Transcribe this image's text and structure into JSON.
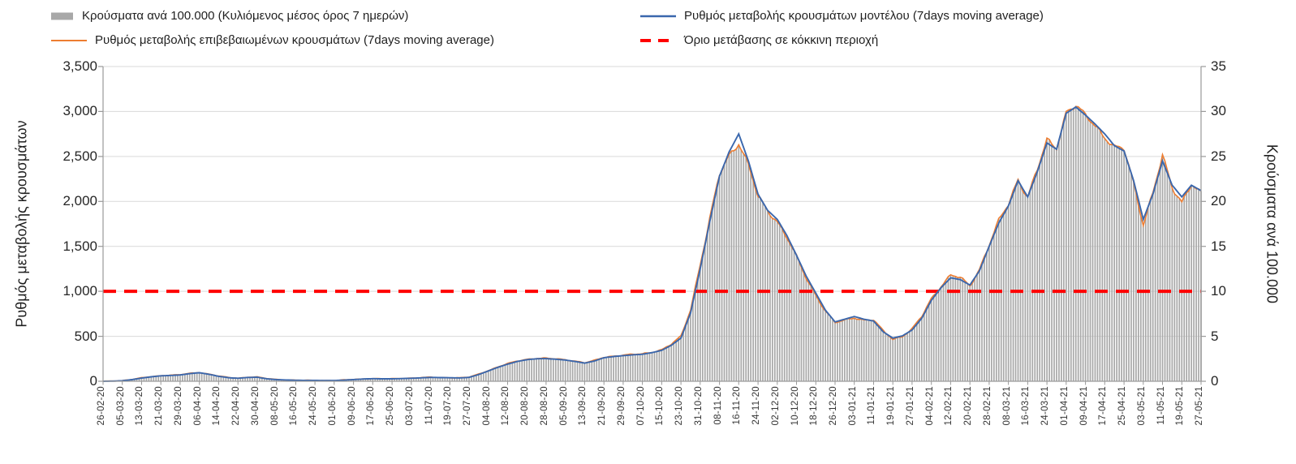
{
  "legend": {
    "bars": {
      "label": "Κρούσματα ανά 100.000 (Κυλιόμενος μέσος όρος 7 ημερών)",
      "color": "#a8a8a8"
    },
    "model": {
      "label": "Ρυθμός μεταβολής κρουσμάτων μοντέλου (7days moving average)",
      "color": "#3a67ad"
    },
    "confirmed": {
      "label": "Ρυθμός μεταβολής επιβεβαιωμένων κρουσμάτων (7days moving average)",
      "color": "#ed7d31"
    },
    "threshold": {
      "label": "Όριο μετάβασης σε κόκκινη περιοχή",
      "color": "#ff0000"
    }
  },
  "left_axis": {
    "title": "Ρυθμός μεταβολής κρουσμάτων",
    "min": 0,
    "max": 3500,
    "step": 500,
    "ticks": [
      "3,500",
      "3,000",
      "2,500",
      "2,000",
      "1,500",
      "1,000",
      "500",
      "0"
    ]
  },
  "right_axis": {
    "title": "Κρούσματα ανά 100.000",
    "min": 0,
    "max": 35,
    "step": 5,
    "ticks": [
      "35",
      "30",
      "25",
      "20",
      "15",
      "10",
      "5",
      "0"
    ]
  },
  "chart_data": {
    "type": "combo bar + line",
    "grid": "horizontal gridlines on",
    "legend_position": "top",
    "x_tick_labels": [
      "26-02-20",
      "05-03-20",
      "13-03-20",
      "21-03-20",
      "29-03-20",
      "06-04-20",
      "14-04-20",
      "22-04-20",
      "30-04-20",
      "08-05-20",
      "16-05-20",
      "24-05-20",
      "01-06-20",
      "09-06-20",
      "17-06-20",
      "25-06-20",
      "03-07-20",
      "11-07-20",
      "19-07-20",
      "27-07-20",
      "04-08-20",
      "12-08-20",
      "20-08-20",
      "28-08-20",
      "05-09-20",
      "13-09-20",
      "21-09-20",
      "29-09-20",
      "07-10-20",
      "15-10-20",
      "23-10-20",
      "31-10-20",
      "08-11-20",
      "16-11-20",
      "24-11-20",
      "02-12-20",
      "10-12-20",
      "18-12-20",
      "26-12-20",
      "03-01-21",
      "11-01-21",
      "19-01-21",
      "27-01-21",
      "04-02-21",
      "12-02-21",
      "20-02-21",
      "28-02-21",
      "08-03-21",
      "16-03-21",
      "24-03-21",
      "01-04-21",
      "09-04-21",
      "17-04-21",
      "25-04-21",
      "03-05-21",
      "11-05-21",
      "19-05-21",
      "27-05-21"
    ],
    "samples_start": "26-02-20",
    "samples_step_days": 4,
    "n_samples": 115,
    "threshold_value_left_axis": 1000,
    "threshold_value_right_axis": 10,
    "bars_note": "bar heights (cases per 100,000, right axis) numerically coincide with confirmed line / 100",
    "series": [
      {
        "id": "bars",
        "name": "Κρούσματα ανά 100.000 (Κυλιόμενος μέσος όρος 7 ημερών)",
        "type": "bar",
        "axis": "right",
        "values": [
          0,
          0,
          0.1,
          0.2,
          0.4,
          0.5,
          0.6,
          0.7,
          0.7,
          0.9,
          1.0,
          0.8,
          0.6,
          0.4,
          0.4,
          0.5,
          0.5,
          0.3,
          0.2,
          0.2,
          0.1,
          0.1,
          0.1,
          0.1,
          0.1,
          0.1,
          0.2,
          0.3,
          0.3,
          0.3,
          0.3,
          0.3,
          0.4,
          0.4,
          0.5,
          0.4,
          0.4,
          0.4,
          0.5,
          0.8,
          1.2,
          1.6,
          2.0,
          2.3,
          2.5,
          2.6,
          2.6,
          2.5,
          2.4,
          2.3,
          2.1,
          2.3,
          2.7,
          2.8,
          2.9,
          3.0,
          3.1,
          3.3,
          3.5,
          4.1,
          5.0,
          8.0,
          13.0,
          18.0,
          23.0,
          25.2,
          26.5,
          24.0,
          20.5,
          19.0,
          17.8,
          16.0,
          13.8,
          11.5,
          9.6,
          7.8,
          6.5,
          6.8,
          7.1,
          6.8,
          6.8,
          5.6,
          4.7,
          5.0,
          5.8,
          7.2,
          9.2,
          10.6,
          11.8,
          11.5,
          10.6,
          12.5,
          15.2,
          17.8,
          19.7,
          22.5,
          20.5,
          23.5,
          26.8,
          26.0,
          30.0,
          30.6,
          29.5,
          28.5,
          27.2,
          26.0,
          25.8,
          22.0,
          17.5,
          21.0,
          25.0,
          21.5,
          20.0,
          22.0,
          20.8
        ]
      },
      {
        "id": "model",
        "name": "Ρυθμός μεταβολής κρουσμάτων μοντέλου (7days moving average)",
        "type": "line",
        "axis": "left",
        "values": [
          0,
          2,
          6,
          18,
          35,
          50,
          60,
          65,
          70,
          85,
          95,
          78,
          55,
          40,
          33,
          42,
          45,
          28,
          18,
          14,
          11,
          10,
          9,
          8,
          8,
          13,
          19,
          25,
          29,
          27,
          27,
          30,
          33,
          38,
          43,
          41,
          39,
          37,
          43,
          75,
          115,
          155,
          190,
          220,
          240,
          250,
          252,
          245,
          236,
          220,
          202,
          225,
          262,
          275,
          285,
          294,
          300,
          318,
          344,
          400,
          480,
          760,
          1250,
          1780,
          2280,
          2550,
          2750,
          2450,
          2080,
          1900,
          1800,
          1620,
          1400,
          1170,
          980,
          790,
          660,
          690,
          720,
          690,
          670,
          550,
          480,
          505,
          570,
          700,
          900,
          1040,
          1150,
          1130,
          1070,
          1230,
          1500,
          1760,
          1950,
          2230,
          2050,
          2330,
          2650,
          2580,
          2980,
          3050,
          2960,
          2860,
          2750,
          2620,
          2560,
          2230,
          1800,
          2080,
          2450,
          2180,
          2050,
          2180,
          2120
        ]
      },
      {
        "id": "confirmed",
        "name": "Ρυθμός μεταβολής επιβεβαιωμένων κρουσμάτων (7days moving average)",
        "type": "line",
        "axis": "left",
        "values": [
          0,
          3,
          8,
          20,
          38,
          52,
          62,
          68,
          72,
          88,
          98,
          80,
          58,
          42,
          35,
          45,
          48,
          30,
          20,
          15,
          12,
          10,
          10,
          8,
          8,
          14,
          20,
          26,
          30,
          28,
          28,
          32,
          35,
          40,
          45,
          42,
          40,
          38,
          45,
          80,
          120,
          160,
          195,
          225,
          245,
          255,
          255,
          248,
          240,
          225,
          205,
          230,
          268,
          280,
          290,
          298,
          305,
          325,
          350,
          410,
          500,
          800,
          1300,
          1800,
          2300,
          2520,
          2650,
          2400,
          2050,
          1900,
          1780,
          1600,
          1380,
          1150,
          960,
          780,
          650,
          680,
          710,
          680,
          680,
          560,
          470,
          500,
          580,
          720,
          920,
          1060,
          1180,
          1150,
          1060,
          1250,
          1520,
          1780,
          1970,
          2250,
          2050,
          2350,
          2680,
          2600,
          3000,
          3060,
          2950,
          2850,
          2720,
          2600,
          2580,
          2200,
          1750,
          2100,
          2500,
          2150,
          2000,
          2200,
          2080
        ]
      },
      {
        "id": "threshold",
        "name": "Όριο μετάβασης σε κόκκινη περιοχή",
        "type": "dashed-horizontal-line",
        "axis": "left",
        "value": 1000
      }
    ]
  }
}
